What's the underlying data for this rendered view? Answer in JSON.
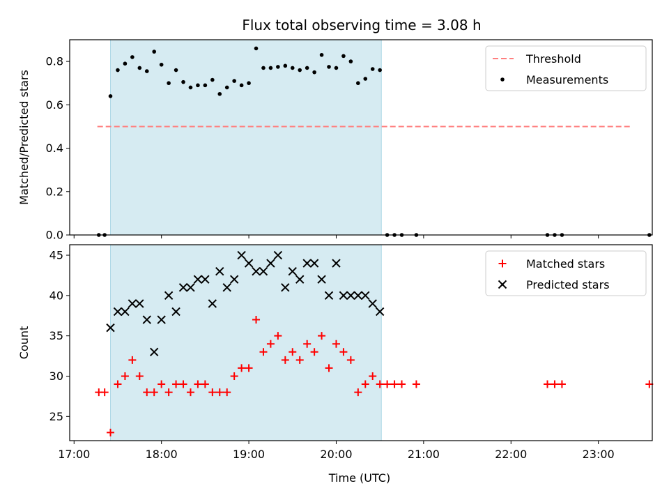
{
  "title": "Flux total observing time = 3.08 h",
  "chart_data": [
    {
      "type": "scatter",
      "panel": "top",
      "ylabel": "Matched/Predicted stars",
      "ylim": [
        0,
        0.9
      ],
      "yticks": [
        0.0,
        0.2,
        0.4,
        0.6,
        0.8
      ],
      "ytick_labels": [
        "0.0",
        "0.2",
        "0.4",
        "0.6",
        "0.8"
      ],
      "xlim": [
        "16:57",
        "23:37"
      ],
      "shaded_region": {
        "start": "17:25",
        "end": "20:31",
        "color": "#add8e6"
      },
      "threshold": {
        "name": "Threshold",
        "value": 0.5,
        "x_start": "17:16",
        "x_end": "23:22",
        "color": "#ff7f7f"
      },
      "series": [
        {
          "name": "Measurements",
          "color": "#000000",
          "marker": "dot",
          "points": [
            [
              "17:17",
              0.0
            ],
            [
              "17:21",
              0.0
            ],
            [
              "17:25",
              0.64
            ],
            [
              "17:30",
              0.76
            ],
            [
              "17:35",
              0.79
            ],
            [
              "17:40",
              0.82
            ],
            [
              "17:45",
              0.77
            ],
            [
              "17:50",
              0.755
            ],
            [
              "17:55",
              0.845
            ],
            [
              "18:00",
              0.785
            ],
            [
              "18:05",
              0.7
            ],
            [
              "18:10",
              0.76
            ],
            [
              "18:15",
              0.705
            ],
            [
              "18:20",
              0.68
            ],
            [
              "18:25",
              0.69
            ],
            [
              "18:30",
              0.69
            ],
            [
              "18:35",
              0.715
            ],
            [
              "18:40",
              0.65
            ],
            [
              "18:45",
              0.68
            ],
            [
              "18:50",
              0.71
            ],
            [
              "18:55",
              0.69
            ],
            [
              "19:00",
              0.7
            ],
            [
              "19:05",
              0.86
            ],
            [
              "19:10",
              0.77
            ],
            [
              "19:15",
              0.77
            ],
            [
              "19:20",
              0.775
            ],
            [
              "19:25",
              0.78
            ],
            [
              "19:30",
              0.77
            ],
            [
              "19:35",
              0.76
            ],
            [
              "19:40",
              0.77
            ],
            [
              "19:45",
              0.75
            ],
            [
              "19:50",
              0.83
            ],
            [
              "19:55",
              0.775
            ],
            [
              "20:00",
              0.77
            ],
            [
              "20:05",
              0.825
            ],
            [
              "20:10",
              0.8
            ],
            [
              "20:15",
              0.7
            ],
            [
              "20:20",
              0.72
            ],
            [
              "20:25",
              0.765
            ],
            [
              "20:30",
              0.76
            ],
            [
              "20:35",
              0.0
            ],
            [
              "20:40",
              0.0
            ],
            [
              "20:45",
              0.0
            ],
            [
              "20:55",
              0.0
            ],
            [
              "22:25",
              0.0
            ],
            [
              "22:30",
              0.0
            ],
            [
              "22:35",
              0.0
            ],
            [
              "23:35",
              0.0
            ]
          ]
        }
      ],
      "legend": {
        "placement": "top-right",
        "entries": [
          "Threshold",
          "Measurements"
        ]
      }
    },
    {
      "type": "scatter",
      "panel": "bottom",
      "xlabel": "Time (UTC)",
      "ylabel": "Count",
      "ylim": [
        22,
        46.3
      ],
      "yticks": [
        25,
        30,
        35,
        40,
        45
      ],
      "ytick_labels": [
        "25",
        "30",
        "35",
        "40",
        "45"
      ],
      "xlim": [
        "16:57",
        "23:37"
      ],
      "xticks": [
        "17:00",
        "18:00",
        "19:00",
        "20:00",
        "21:00",
        "22:00",
        "23:00"
      ],
      "xtick_labels": [
        "17:00",
        "18:00",
        "19:00",
        "20:00",
        "21:00",
        "22:00",
        "23:00"
      ],
      "shaded_region": {
        "start": "17:25",
        "end": "20:31",
        "color": "#add8e6"
      },
      "series": [
        {
          "name": "Matched stars",
          "color": "#ff0000",
          "marker": "plus",
          "points": [
            [
              "17:17",
              28
            ],
            [
              "17:21",
              28
            ],
            [
              "17:25",
              23
            ],
            [
              "17:30",
              29
            ],
            [
              "17:35",
              30
            ],
            [
              "17:40",
              32
            ],
            [
              "17:45",
              30
            ],
            [
              "17:50",
              28
            ],
            [
              "17:55",
              28
            ],
            [
              "18:00",
              29
            ],
            [
              "18:05",
              28
            ],
            [
              "18:10",
              29
            ],
            [
              "18:15",
              29
            ],
            [
              "18:20",
              28
            ],
            [
              "18:25",
              29
            ],
            [
              "18:30",
              29
            ],
            [
              "18:35",
              28
            ],
            [
              "18:40",
              28
            ],
            [
              "18:45",
              28
            ],
            [
              "18:50",
              30
            ],
            [
              "18:55",
              31
            ],
            [
              "19:00",
              31
            ],
            [
              "19:05",
              37
            ],
            [
              "19:10",
              33
            ],
            [
              "19:15",
              34
            ],
            [
              "19:20",
              35
            ],
            [
              "19:25",
              32
            ],
            [
              "19:30",
              33
            ],
            [
              "19:35",
              32
            ],
            [
              "19:40",
              34
            ],
            [
              "19:45",
              33
            ],
            [
              "19:50",
              35
            ],
            [
              "19:55",
              31
            ],
            [
              "20:00",
              34
            ],
            [
              "20:05",
              33
            ],
            [
              "20:10",
              32
            ],
            [
              "20:15",
              28
            ],
            [
              "20:20",
              29
            ],
            [
              "20:25",
              30
            ],
            [
              "20:30",
              29
            ],
            [
              "20:35",
              29
            ],
            [
              "20:40",
              29
            ],
            [
              "20:45",
              29
            ],
            [
              "20:55",
              29
            ],
            [
              "22:25",
              29
            ],
            [
              "22:30",
              29
            ],
            [
              "22:35",
              29
            ],
            [
              "23:35",
              29
            ]
          ]
        },
        {
          "name": "Predicted stars",
          "color": "#000000",
          "marker": "x",
          "points": [
            [
              "17:25",
              36
            ],
            [
              "17:30",
              38
            ],
            [
              "17:35",
              38
            ],
            [
              "17:40",
              39
            ],
            [
              "17:45",
              39
            ],
            [
              "17:50",
              37
            ],
            [
              "17:55",
              33
            ],
            [
              "18:00",
              37
            ],
            [
              "18:05",
              40
            ],
            [
              "18:10",
              38
            ],
            [
              "18:15",
              41
            ],
            [
              "18:20",
              41
            ],
            [
              "18:25",
              42
            ],
            [
              "18:30",
              42
            ],
            [
              "18:35",
              39
            ],
            [
              "18:40",
              43
            ],
            [
              "18:45",
              41
            ],
            [
              "18:50",
              42
            ],
            [
              "18:55",
              45
            ],
            [
              "19:00",
              44
            ],
            [
              "19:05",
              43
            ],
            [
              "19:10",
              43
            ],
            [
              "19:15",
              44
            ],
            [
              "19:20",
              45
            ],
            [
              "19:25",
              41
            ],
            [
              "19:30",
              43
            ],
            [
              "19:35",
              42
            ],
            [
              "19:40",
              44
            ],
            [
              "19:45",
              44
            ],
            [
              "19:50",
              42
            ],
            [
              "19:55",
              40
            ],
            [
              "20:00",
              44
            ],
            [
              "20:05",
              40
            ],
            [
              "20:10",
              40
            ],
            [
              "20:15",
              40
            ],
            [
              "20:20",
              40
            ],
            [
              "20:25",
              39
            ],
            [
              "20:30",
              38
            ]
          ]
        }
      ],
      "legend": {
        "placement": "top-right",
        "entries": [
          "Matched stars",
          "Predicted stars"
        ]
      }
    }
  ]
}
